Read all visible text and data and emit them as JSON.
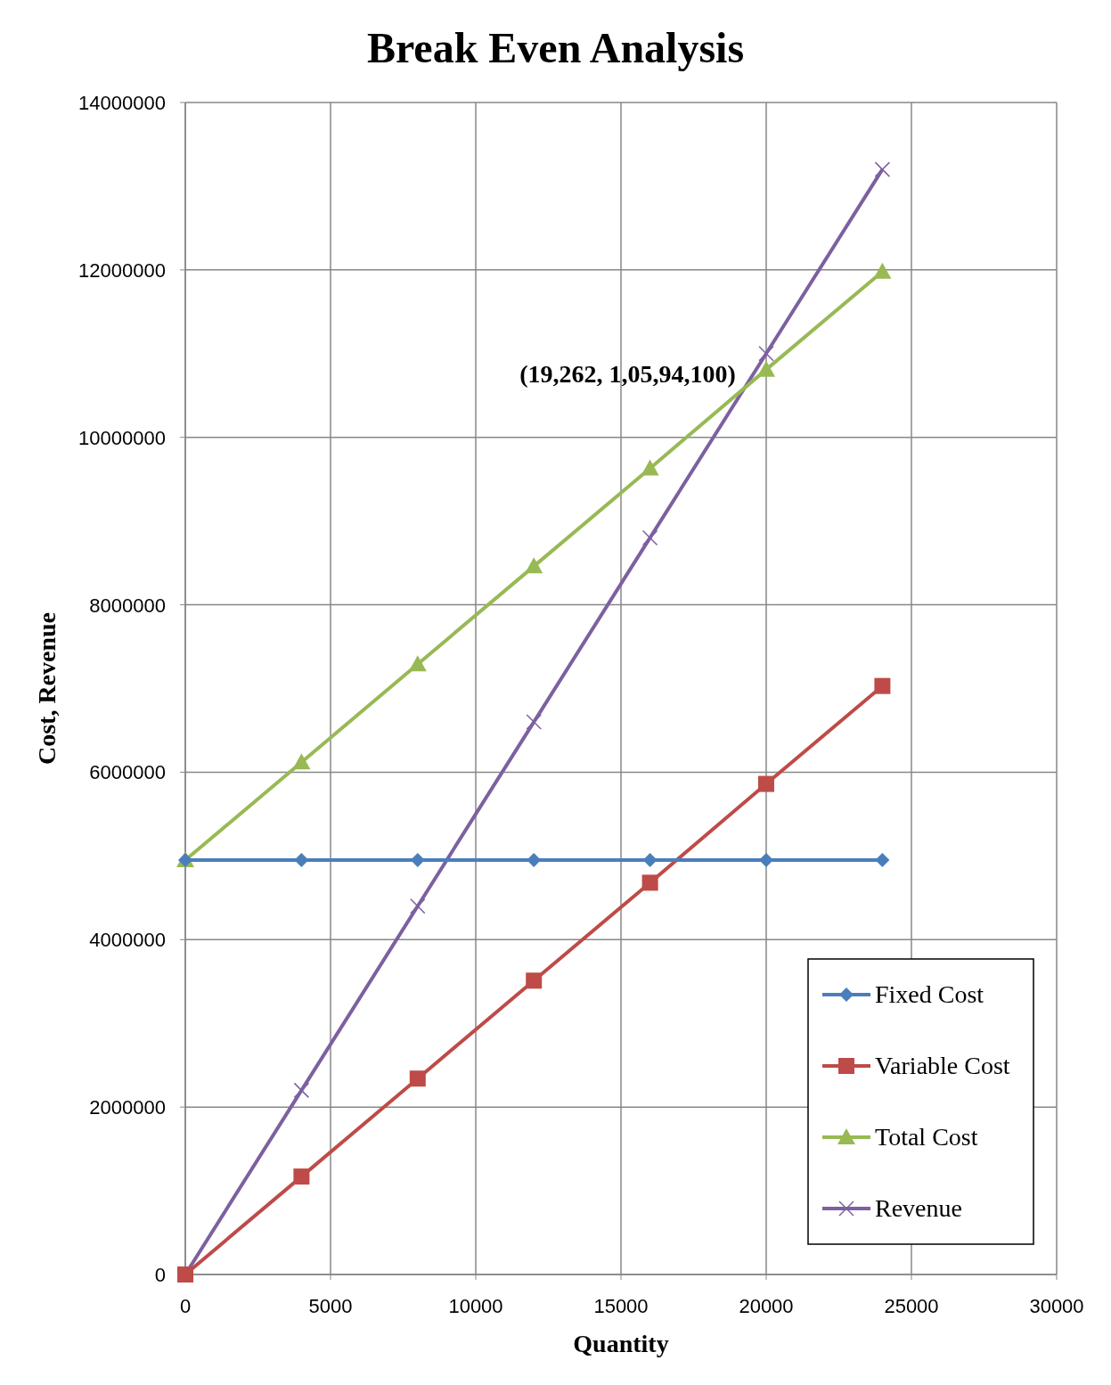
{
  "chart_data": {
    "type": "line",
    "title": "Break Even Analysis",
    "xlabel": "Quantity",
    "ylabel": "Cost, Revenue",
    "x": [
      0,
      4000,
      8000,
      12000,
      16000,
      20000,
      24000
    ],
    "series": [
      {
        "name": "Fixed Cost",
        "color": "#4a7ebb",
        "marker": "diamond",
        "values": [
          4950000,
          4950000,
          4950000,
          4950000,
          4950000,
          4950000,
          4950000
        ]
      },
      {
        "name": "Variable Cost",
        "color": "#be4b48",
        "marker": "square",
        "values": [
          0,
          1170000,
          2340000,
          3510000,
          4680000,
          5860000,
          7030000
        ]
      },
      {
        "name": "Total Cost",
        "color": "#98b954",
        "marker": "triangle",
        "values": [
          4950000,
          6120000,
          7290000,
          8460000,
          9630000,
          10810000,
          11980000
        ]
      },
      {
        "name": "Revenue",
        "color": "#7d60a0",
        "marker": "cross",
        "values": [
          0,
          2200000,
          4400000,
          6600000,
          8800000,
          11000000,
          13200000
        ]
      }
    ],
    "xlim": [
      0,
      30000
    ],
    "xticks": [
      0,
      5000,
      10000,
      15000,
      20000,
      25000,
      30000
    ],
    "ylim": [
      0,
      14000000
    ],
    "yticks": [
      0,
      2000000,
      4000000,
      6000000,
      8000000,
      10000000,
      12000000,
      14000000
    ],
    "grid": true,
    "legend": "bottom right",
    "line_style": "solid",
    "annotations": [
      {
        "text": "(19,262, 1,05,94,100)",
        "x": 19262,
        "y": 10594100
      }
    ]
  }
}
